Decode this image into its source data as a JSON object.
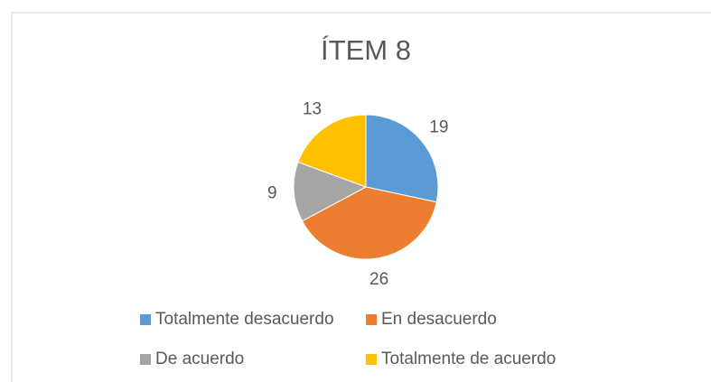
{
  "chart_data": {
    "type": "pie",
    "title": "ÍTEM 8",
    "categories": [
      "Totalmente desacuerdo",
      "En desacuerdo",
      "De acuerdo",
      "Totalmente de acuerdo"
    ],
    "values": [
      19,
      26,
      9,
      13
    ],
    "colors": [
      "#5b9bd5",
      "#ed7d31",
      "#a5a5a5",
      "#ffc000"
    ],
    "legend": "bottom"
  }
}
